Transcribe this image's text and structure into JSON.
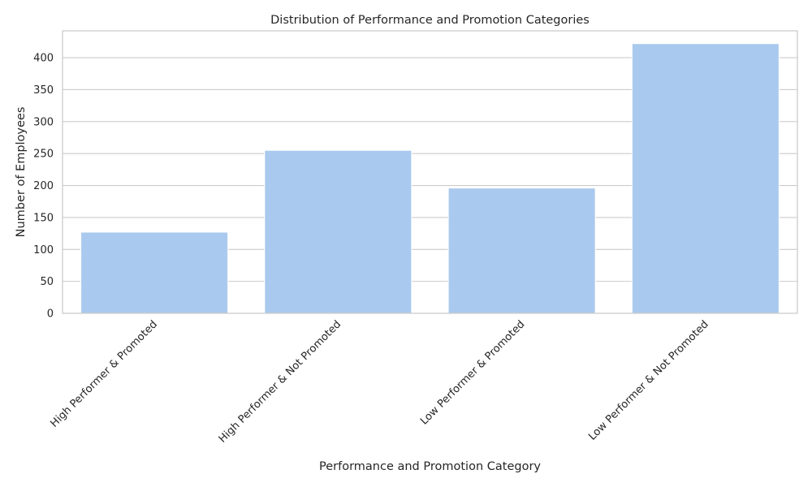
{
  "chart_data": {
    "type": "bar",
    "title": "Distribution of Performance and Promotion Categories",
    "xlabel": "Performance and Promotion Category",
    "ylabel": "Number of Employees",
    "categories": [
      "High Performer & Promoted",
      "High Performer & Not Promoted",
      "Low Performer & Promoted",
      "Low Performer & Not Promoted"
    ],
    "values": [
      127,
      255,
      196,
      422
    ],
    "ylim": [
      0,
      442
    ],
    "yticks": [
      0,
      50,
      100,
      150,
      200,
      250,
      300,
      350,
      400
    ],
    "grid": true,
    "bar_color": "#a9c9ee",
    "grid_color": "#cccccc",
    "axis_color": "#cccccc"
  }
}
